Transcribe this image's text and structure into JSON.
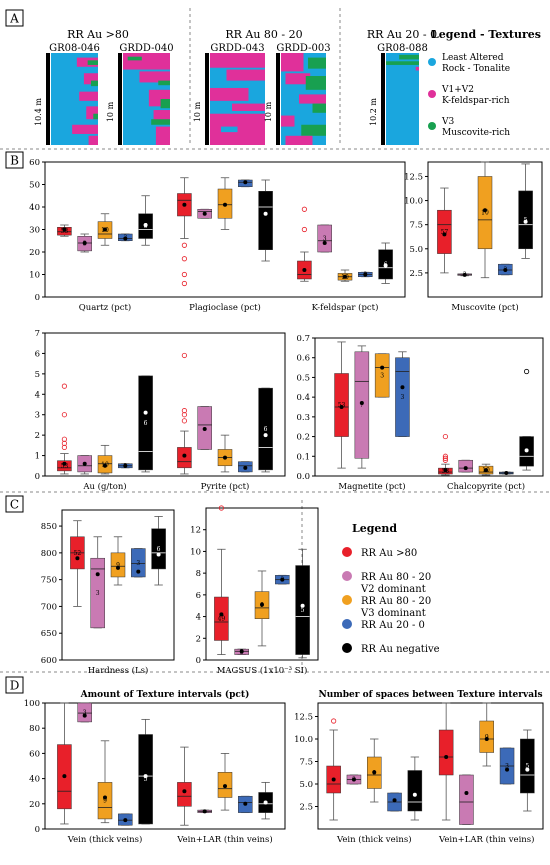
{
  "colors": {
    "red": "#e8202a",
    "pink": "#c97ab3",
    "orange": "#f0a020",
    "blue": "#3c6ab8",
    "black": "#000000",
    "cyan": "#1aa6de",
    "magenta": "#e0309a",
    "green": "#18a050"
  },
  "panel_labels": [
    "A",
    "B",
    "C",
    "D"
  ],
  "panelA": {
    "groups": [
      "RR Au >80",
      "RR Au 80 - 20",
      "RR Au 20 - 0"
    ],
    "columns": [
      {
        "name": "GR08-046",
        "depth": "10.4 m"
      },
      {
        "name": "GRDD-040",
        "depth": "10 m"
      },
      {
        "name": "GRDD-043",
        "depth": "10 m"
      },
      {
        "name": "GRDD-003",
        "depth": "10 m"
      },
      {
        "name": "GR08-088",
        "depth": "10.2 m"
      }
    ],
    "legend_title": "Legend - Textures",
    "legend": [
      {
        "line1": "Least Altered",
        "line2": "Rock - Tonalite",
        "color": "#1aa6de"
      },
      {
        "line1": "V1+V2",
        "line2": "K-feldspar-rich",
        "color": "#e0309a"
      },
      {
        "line1": "V3",
        "line2": "Muscovite-rich",
        "color": "#18a050"
      }
    ]
  },
  "legendC": {
    "title": "Legend",
    "items": [
      {
        "line1": "RR Au >80",
        "line2": "",
        "color": "#e8202a"
      },
      {
        "line1": "RR Au 80 - 20",
        "line2": "V2 dominant",
        "color": "#c97ab3"
      },
      {
        "line1": "RR Au 80 - 20",
        "line2": "V3 dominant",
        "color": "#f0a020"
      },
      {
        "line1": "RR Au 20 - 0",
        "line2": "",
        "color": "#3c6ab8"
      },
      {
        "line1": "RR Au negative",
        "line2": "",
        "color": "#000000"
      }
    ]
  },
  "chart_data": [
    {
      "id": "B1",
      "type": "box",
      "ylim": [
        0,
        60
      ],
      "yticks": [
        0,
        10,
        20,
        30,
        40,
        50,
        60
      ],
      "categories": [
        "Quartz (pct)",
        "Plagioclase (pct)",
        "K-feldspar (pct)"
      ],
      "groups": [
        [
          {
            "q1": 27.5,
            "med": 29,
            "q3": 31,
            "lo": 27,
            "hi": 32,
            "mean": 30,
            "n": "53",
            "out": []
          },
          {
            "q1": 20.5,
            "med": 24,
            "q3": 27,
            "lo": 20,
            "hi": 28,
            "mean": 24,
            "n": "3",
            "out": []
          },
          {
            "q1": 26,
            "med": 28,
            "q3": 33.5,
            "lo": 23,
            "hi": 37,
            "mean": 30,
            "n": "10",
            "out": []
          },
          {
            "q1": 25,
            "med": 26,
            "q3": 28,
            "lo": 25,
            "hi": 28,
            "mean": 26,
            "n": "3",
            "out": []
          },
          {
            "q1": 26,
            "med": 30,
            "q3": 37,
            "lo": 23,
            "hi": 45,
            "mean": 32,
            "n": "6",
            "out": []
          }
        ],
        [
          {
            "q1": 36,
            "med": 43,
            "q3": 46,
            "lo": 26,
            "hi": 53,
            "mean": 41,
            "n": "",
            "out": [
              23,
              17,
              10,
              6
            ]
          },
          {
            "q1": 35,
            "med": 38,
            "q3": 39,
            "lo": 35,
            "hi": 39,
            "mean": 37,
            "n": "",
            "out": []
          },
          {
            "q1": 35,
            "med": 41,
            "q3": 48,
            "lo": 30,
            "hi": 53,
            "mean": 41,
            "n": "",
            "out": []
          },
          {
            "q1": 49,
            "med": 51,
            "q3": 52,
            "lo": 49,
            "hi": 52,
            "mean": 51,
            "n": "",
            "out": []
          },
          {
            "q1": 21,
            "med": 40,
            "q3": 47,
            "lo": 16,
            "hi": 52,
            "mean": 37,
            "n": "",
            "out": []
          }
        ],
        [
          {
            "q1": 8,
            "med": 10,
            "q3": 16,
            "lo": 7,
            "hi": 20,
            "mean": 12,
            "n": "",
            "out": [
              30,
              39
            ]
          },
          {
            "q1": 20,
            "med": 25,
            "q3": 32,
            "lo": 20,
            "hi": 32,
            "mean": 24,
            "n": "3",
            "out": []
          },
          {
            "q1": 7.5,
            "med": 9,
            "q3": 10.5,
            "lo": 7,
            "hi": 12,
            "mean": 9,
            "n": "10",
            "out": []
          },
          {
            "q1": 9,
            "med": 10,
            "q3": 11,
            "lo": 9,
            "hi": 11,
            "mean": 10,
            "n": "3",
            "out": []
          },
          {
            "q1": 8,
            "med": 13,
            "q3": 21,
            "lo": 6,
            "hi": 24,
            "mean": 14,
            "n": "6",
            "out": []
          }
        ]
      ]
    },
    {
      "id": "B2",
      "type": "box",
      "ylim": [
        0,
        14
      ],
      "yticks": [
        2.5,
        5,
        7.5,
        10,
        12.5
      ],
      "ytickfmt": "1",
      "categories": [
        "Muscovite (pct)"
      ],
      "groups": [
        [
          {
            "q1": 4.5,
            "med": 7.5,
            "q3": 9,
            "lo": 2.5,
            "hi": 11.3,
            "mean": 6.5,
            "n": "57",
            "out": []
          },
          {
            "q1": 2.25,
            "med": 2.3,
            "q3": 2.4,
            "lo": 2.2,
            "hi": 2.4,
            "mean": 2.3,
            "n": "3",
            "out": []
          },
          {
            "q1": 5,
            "med": 8,
            "q3": 12.5,
            "lo": 2,
            "hi": 14,
            "mean": 9,
            "n": "10",
            "out": []
          },
          {
            "q1": 2.3,
            "med": 2.8,
            "q3": 3.4,
            "lo": 2.3,
            "hi": 3.4,
            "mean": 2.8,
            "n": "3",
            "out": []
          },
          {
            "q1": 5,
            "med": 7.5,
            "q3": 11,
            "lo": 4,
            "hi": 13.8,
            "mean": 7.8,
            "n": "5",
            "out": []
          }
        ]
      ]
    },
    {
      "id": "B3",
      "type": "box",
      "ylim": [
        0,
        7
      ],
      "yticks": [
        0,
        1,
        2,
        3,
        4,
        5,
        6,
        7
      ],
      "categories": [
        "Au (g/ton)",
        "Pyrite (pct)"
      ],
      "groups": [
        [
          {
            "q1": 0.25,
            "med": 0.4,
            "q3": 0.75,
            "lo": 0.1,
            "hi": 1.1,
            "mean": 0.6,
            "n": "53",
            "out": [
              1.4,
              1.6,
              1.8,
              3,
              4.4
            ]
          },
          {
            "q1": 0.2,
            "med": 0.5,
            "q3": 1,
            "lo": 0.1,
            "hi": 1,
            "mean": 0.6,
            "n": "",
            "out": []
          },
          {
            "q1": 0.15,
            "med": 0.6,
            "q3": 1,
            "lo": 0.1,
            "hi": 1.5,
            "mean": 0.5,
            "n": "10",
            "out": []
          },
          {
            "q1": 0.4,
            "med": 0.5,
            "q3": 0.6,
            "lo": 0.4,
            "hi": 0.6,
            "mean": 0.5,
            "n": "3",
            "out": []
          },
          {
            "q1": 0.3,
            "med": 1.2,
            "q3": 4.9,
            "lo": 0.2,
            "hi": 4.9,
            "mean": 3.1,
            "n": "6",
            "out": []
          }
        ],
        [
          {
            "q1": 0.4,
            "med": 0.7,
            "q3": 1.4,
            "lo": 0.1,
            "hi": 2.2,
            "mean": 1,
            "n": "",
            "out": [
              2.7,
              3,
              3.2,
              5.9
            ]
          },
          {
            "q1": 1.3,
            "med": 2.5,
            "q3": 3.4,
            "lo": 1.3,
            "hi": 3.4,
            "mean": 2.3,
            "n": "",
            "out": []
          },
          {
            "q1": 0.5,
            "med": 0.9,
            "q3": 1.3,
            "lo": 0.2,
            "hi": 2,
            "mean": 0.9,
            "n": "",
            "out": []
          },
          {
            "q1": 0.2,
            "med": 0.5,
            "q3": 0.7,
            "lo": 0.2,
            "hi": 0.7,
            "mean": 0.4,
            "n": "",
            "out": []
          },
          {
            "q1": 0.3,
            "med": 1.4,
            "q3": 4.3,
            "lo": 0.2,
            "hi": 4.3,
            "mean": 2,
            "n": "6",
            "out": []
          }
        ]
      ]
    },
    {
      "id": "B4",
      "type": "box",
      "ylim": [
        0,
        0.7
      ],
      "yticks": [
        0,
        0.1,
        0.2,
        0.3,
        0.4,
        0.5,
        0.6,
        0.7
      ],
      "ytickfmt": "1",
      "categories": [
        "Magnetite (pct)",
        "Chalcopyrite (pct)"
      ],
      "groups": [
        [
          {
            "q1": 0.2,
            "med": 0.35,
            "q3": 0.52,
            "lo": 0.04,
            "hi": 0.68,
            "mean": 0.35,
            "n": "53",
            "out": []
          },
          {
            "q1": 0.09,
            "med": 0.48,
            "q3": 0.63,
            "lo": 0.04,
            "hi": 0.66,
            "mean": 0.37,
            "n": "7",
            "out": []
          },
          {
            "q1": 0.4,
            "med": 0.55,
            "q3": 0.62,
            "lo": 0.4,
            "hi": 0.62,
            "mean": 0.55,
            "n": "3",
            "out": []
          },
          {
            "q1": 0.2,
            "med": 0.53,
            "q3": 0.6,
            "lo": 0.2,
            "hi": 0.63,
            "mean": 0.45,
            "n": "3",
            "out": []
          }
        ],
        [
          {
            "q1": 0.01,
            "med": 0.02,
            "q3": 0.04,
            "lo": 0.005,
            "hi": 0.06,
            "mean": 0.03,
            "n": "53",
            "out": [
              0.08,
              0.09,
              0.1,
              0.2
            ]
          },
          {
            "q1": 0.02,
            "med": 0.04,
            "q3": 0.08,
            "lo": 0.02,
            "hi": 0.08,
            "mean": 0.04,
            "n": "",
            "out": []
          },
          {
            "q1": 0.01,
            "med": 0.02,
            "q3": 0.05,
            "lo": 0.005,
            "hi": 0.06,
            "mean": 0.03,
            "n": "10",
            "out": []
          },
          {
            "q1": 0.01,
            "med": 0.015,
            "q3": 0.02,
            "lo": 0.01,
            "hi": 0.02,
            "mean": 0.015,
            "n": "",
            "out": []
          },
          {
            "q1": 0.05,
            "med": 0.1,
            "q3": 0.2,
            "lo": 0.03,
            "hi": 0.2,
            "mean": 0.13,
            "n": "",
            "out": [
              0.53
            ]
          }
        ]
      ]
    },
    {
      "id": "C1",
      "type": "box",
      "ylim": [
        600,
        880
      ],
      "yticks": [
        600,
        650,
        700,
        750,
        800,
        850
      ],
      "categories": [
        "Hardness (Ls)"
      ],
      "groups": [
        [
          {
            "q1": 770,
            "med": 800,
            "q3": 830,
            "lo": 700,
            "hi": 860,
            "mean": 790,
            "n": "52",
            "out": []
          },
          {
            "q1": 660,
            "med": 770,
            "q3": 790,
            "lo": 660,
            "hi": 830,
            "mean": 760,
            "n": "3",
            "out": []
          },
          {
            "q1": 755,
            "med": 775,
            "q3": 800,
            "lo": 740,
            "hi": 830,
            "mean": 772,
            "n": "9",
            "out": []
          },
          {
            "q1": 755,
            "med": 780,
            "q3": 808,
            "lo": 755,
            "hi": 808,
            "mean": 765,
            "n": "3",
            "out": []
          },
          {
            "q1": 770,
            "med": 800,
            "q3": 845,
            "lo": 740,
            "hi": 868,
            "mean": 797,
            "n": "6",
            "out": []
          }
        ]
      ]
    },
    {
      "id": "C2",
      "type": "box",
      "ylim": [
        0,
        14
      ],
      "yticks": [
        0,
        2,
        4,
        6,
        8,
        10,
        12
      ],
      "categories": [
        "MAGSUS (1x10⁻³ SI)"
      ],
      "groups": [
        [
          {
            "q1": 1.8,
            "med": 3.5,
            "q3": 5.8,
            "lo": 0.5,
            "hi": 10.2,
            "mean": 4.2,
            "n": "49",
            "out": [
              14
            ]
          },
          {
            "q1": 0.5,
            "med": 0.8,
            "q3": 1,
            "lo": 0.5,
            "hi": 1,
            "mean": 0.8,
            "n": "3",
            "out": []
          },
          {
            "q1": 3.8,
            "med": 4.8,
            "q3": 6.3,
            "lo": 1.3,
            "hi": 8.2,
            "mean": 5.1,
            "n": "9",
            "out": []
          },
          {
            "q1": 7,
            "med": 7.4,
            "q3": 7.8,
            "lo": 7,
            "hi": 7.8,
            "mean": 7.4,
            "n": "3",
            "out": []
          },
          {
            "q1": 0.5,
            "med": 4,
            "q3": 8.7,
            "lo": 0.2,
            "hi": 10.2,
            "mean": 5,
            "n": "5",
            "out": []
          }
        ]
      ]
    },
    {
      "id": "D1",
      "type": "box",
      "ylim": [
        0,
        100
      ],
      "yticks": [
        0,
        20,
        40,
        60,
        80,
        100
      ],
      "title": "Amount of Texture intervals (pct)",
      "categories": [
        "Vein (thick veins)",
        "Vein+LAR (thin veins)"
      ],
      "groups": [
        [
          {
            "q1": 16,
            "med": 30,
            "q3": 67,
            "lo": 4,
            "hi": 100,
            "mean": 42,
            "n": "",
            "out": []
          },
          {
            "q1": 85,
            "med": 92,
            "q3": 100,
            "lo": 85,
            "hi": 100,
            "mean": 90,
            "n": "3",
            "out": []
          },
          {
            "q1": 8,
            "med": 17,
            "q3": 37,
            "lo": 5,
            "hi": 70,
            "mean": 25,
            "n": "9",
            "out": []
          },
          {
            "q1": 3,
            "med": 7,
            "q3": 12,
            "lo": 3,
            "hi": 12,
            "mean": 7,
            "n": "",
            "out": []
          },
          {
            "q1": 4,
            "med": 42,
            "q3": 75,
            "lo": 4,
            "hi": 87,
            "mean": 42,
            "n": "5",
            "out": []
          }
        ],
        [
          {
            "q1": 18,
            "med": 26,
            "q3": 37,
            "lo": 3,
            "hi": 65,
            "mean": 30,
            "n": "",
            "out": []
          },
          {
            "q1": 13,
            "med": 14,
            "q3": 15,
            "lo": 13,
            "hi": 15,
            "mean": 14,
            "n": "",
            "out": []
          },
          {
            "q1": 25,
            "med": 32,
            "q3": 45,
            "lo": 15,
            "hi": 60,
            "mean": 34,
            "n": "",
            "out": []
          },
          {
            "q1": 13,
            "med": 21,
            "q3": 26,
            "lo": 13,
            "hi": 26,
            "mean": 20,
            "n": "",
            "out": []
          },
          {
            "q1": 13,
            "med": 20,
            "q3": 29,
            "lo": 8,
            "hi": 37,
            "mean": 21,
            "n": "",
            "out": []
          }
        ]
      ]
    },
    {
      "id": "D2",
      "type": "box",
      "ylim": [
        0,
        14
      ],
      "yticks": [
        2.5,
        5,
        7.5,
        10,
        12.5
      ],
      "ytickfmt": "1",
      "title": "Number of spaces between Texture intervals",
      "categories": [
        "Vein (thick veins)",
        "Vein+LAR (thin veins)"
      ],
      "groups": [
        [
          {
            "q1": 4,
            "med": 5,
            "q3": 7,
            "lo": 1,
            "hi": 11,
            "mean": 5.5,
            "n": "",
            "out": [
              12
            ]
          },
          {
            "q1": 5,
            "med": 5.5,
            "q3": 6,
            "lo": 5,
            "hi": 6,
            "mean": 5.5,
            "n": "3",
            "out": []
          },
          {
            "q1": 4.5,
            "med": 6,
            "q3": 8,
            "lo": 3,
            "hi": 10,
            "mean": 6.3,
            "n": "9",
            "out": []
          },
          {
            "q1": 2,
            "med": 3,
            "q3": 4,
            "lo": 2,
            "hi": 4,
            "mean": 3.2,
            "n": "",
            "out": []
          },
          {
            "q1": 2,
            "med": 3,
            "q3": 6.5,
            "lo": 1,
            "hi": 8,
            "mean": 3.8,
            "n": "",
            "out": []
          }
        ],
        [
          {
            "q1": 6,
            "med": 8,
            "q3": 11,
            "lo": 1,
            "hi": 14,
            "mean": 8,
            "n": "",
            "out": []
          },
          {
            "q1": 0.5,
            "med": 3,
            "q3": 6,
            "lo": 0.5,
            "hi": 6,
            "mean": 4,
            "n": "",
            "out": []
          },
          {
            "q1": 8.5,
            "med": 10,
            "q3": 12,
            "lo": 7,
            "hi": 14,
            "mean": 10,
            "n": "9",
            "out": []
          },
          {
            "q1": 5,
            "med": 7,
            "q3": 9,
            "lo": 5,
            "hi": 9,
            "mean": 6.6,
            "n": "3",
            "out": []
          },
          {
            "q1": 4,
            "med": 6,
            "q3": 10,
            "lo": 2,
            "hi": 11,
            "mean": 6.6,
            "n": "5",
            "out": []
          }
        ]
      ]
    }
  ]
}
